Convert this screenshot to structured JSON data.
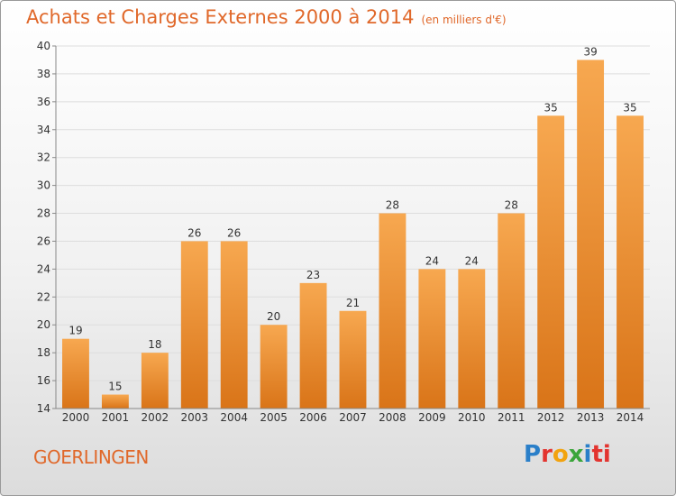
{
  "title": "Achats et Charges Externes 2000 à 2014",
  "subtitle": "(en milliers d'€)",
  "commune": "GOERLINGEN",
  "logo": {
    "name": "Proxiti",
    "letters": [
      "P",
      "r",
      "o",
      "x",
      "i",
      "ti"
    ]
  },
  "colors": {
    "bar_light": "#f7a850",
    "bar_dark": "#d97418",
    "title": "#e0682a"
  },
  "chart_data": {
    "type": "bar",
    "categories": [
      "2000",
      "2001",
      "2002",
      "2003",
      "2004",
      "2005",
      "2006",
      "2007",
      "2008",
      "2009",
      "2010",
      "2011",
      "2012",
      "2013",
      "2014"
    ],
    "values": [
      19,
      15,
      18,
      26,
      26,
      20,
      23,
      21,
      28,
      24,
      24,
      28,
      35,
      39,
      35
    ],
    "data_labels": [
      "19",
      "15",
      "18",
      "26",
      "26",
      "20",
      "23",
      "21",
      "28",
      "24",
      "24",
      "28",
      "35",
      "39",
      "35"
    ],
    "title": "Achats et Charges Externes 2000 à 2014",
    "xlabel": "",
    "ylabel": "",
    "ylim": [
      14,
      40
    ],
    "yticks": [
      14,
      16,
      18,
      20,
      22,
      24,
      26,
      28,
      30,
      32,
      34,
      36,
      38,
      40
    ],
    "grid": true,
    "legend": "none"
  }
}
